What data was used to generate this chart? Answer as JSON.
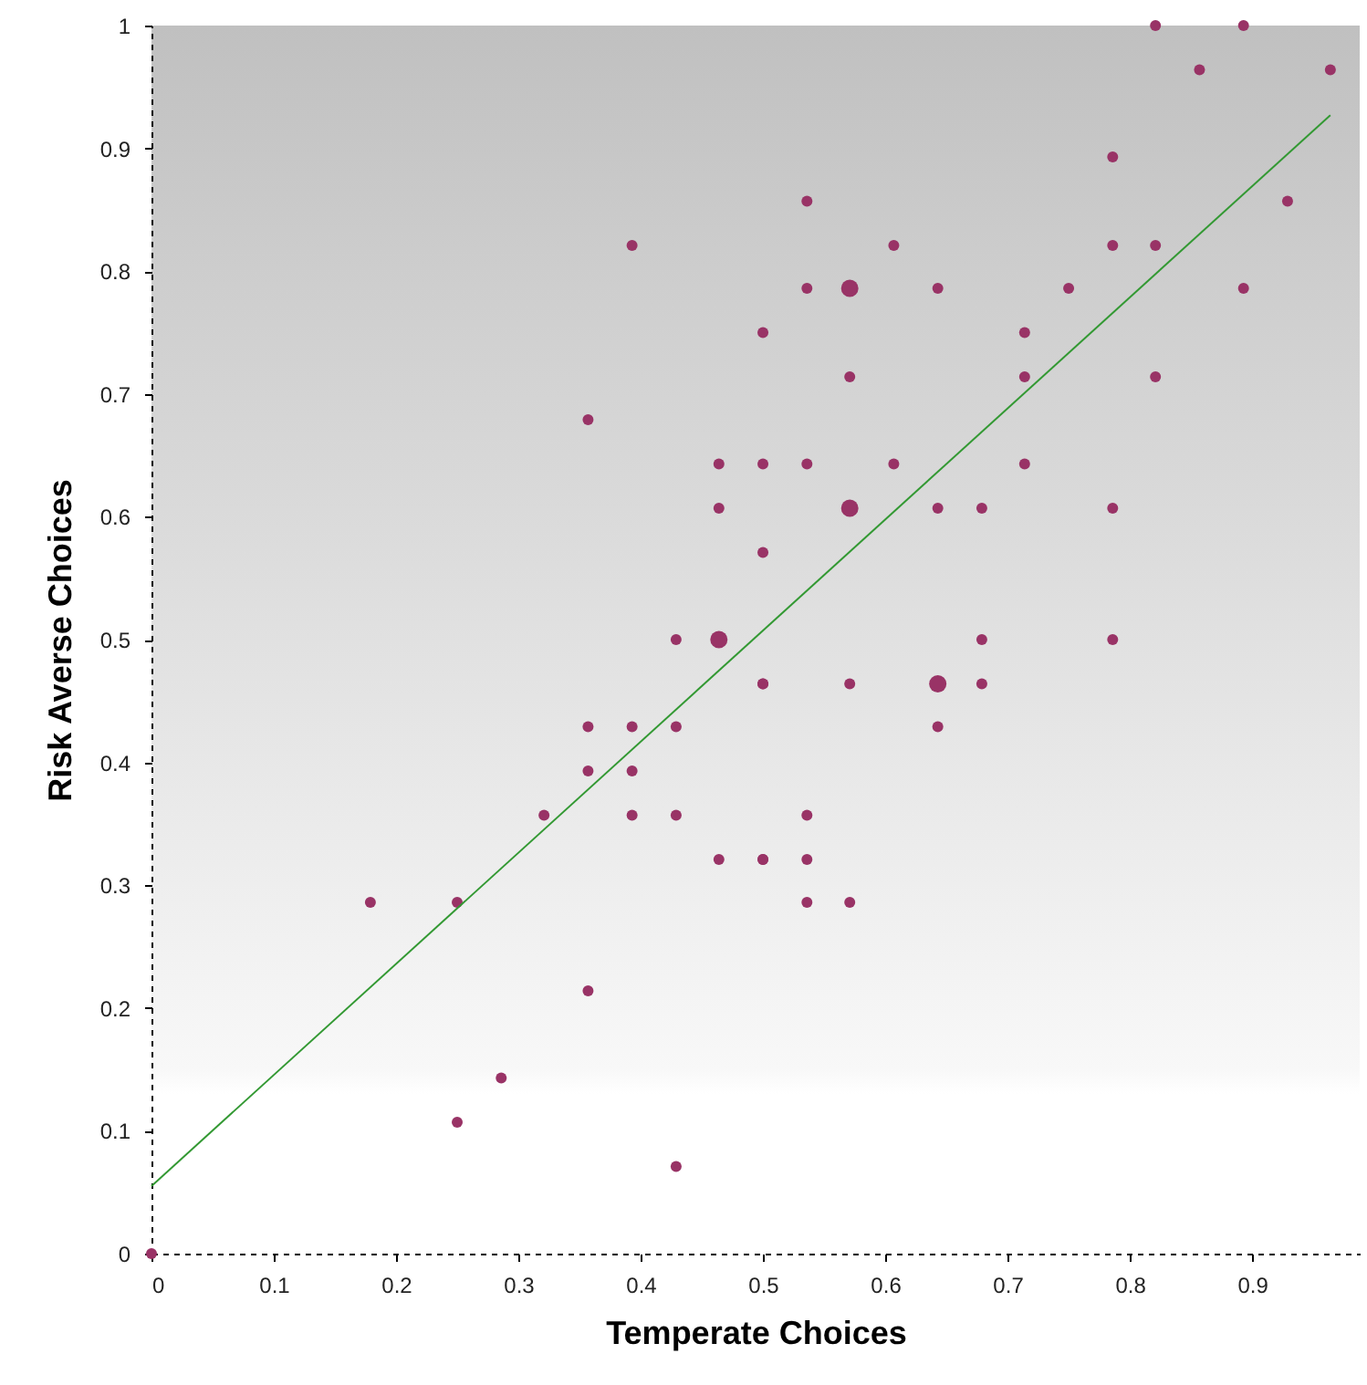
{
  "chart_data": {
    "type": "bubble",
    "xlabel": "Temperate Choices",
    "ylabel": "Risk Averse Choices",
    "xlim": [
      0,
      0.988
    ],
    "ylim": [
      0,
      1
    ],
    "xticks": [
      0,
      0.1,
      0.2,
      0.3,
      0.4,
      0.5,
      0.6,
      0.7,
      0.8,
      0.9
    ],
    "yticks": [
      0,
      0.1,
      0.2,
      0.3,
      0.4,
      0.5,
      0.6,
      0.7,
      0.8,
      0.9,
      1
    ],
    "series": [
      {
        "color": "#993366",
        "marker": "circle",
        "x": [
          0.821,
          0.893,
          0.857,
          0.964,
          0.786,
          0.536,
          0.929,
          0.607,
          0.786,
          0.821,
          0.536,
          0.571,
          0.643,
          0.75,
          0.893,
          0.5,
          0.714,
          0.571,
          0.714,
          0.821,
          0.5,
          0.536,
          0.607,
          0.714,
          0.571,
          0.643,
          0.679,
          0.786,
          0.5,
          0.679,
          0.786,
          0.393,
          0.357,
          0.464,
          0.464,
          0.429,
          0.464,
          0.5,
          0.357,
          0.393,
          0.429,
          0.357,
          0.393,
          0.321,
          0.393,
          0.429,
          0.464,
          0.5,
          0.179,
          0.25,
          0.357,
          0.286,
          0.25,
          0.429,
          0,
          0.5,
          0.571,
          0.643,
          0.679,
          0.643,
          0.536,
          0.5,
          0.536,
          0.536,
          0.571
        ],
        "values": [
          1,
          1,
          0.964,
          0.964,
          0.893,
          0.857,
          0.857,
          0.821,
          0.821,
          0.821,
          0.786,
          0.786,
          0.786,
          0.786,
          0.786,
          0.75,
          0.75,
          0.714,
          0.714,
          0.714,
          0.643,
          0.643,
          0.643,
          0.643,
          0.607,
          0.607,
          0.607,
          0.607,
          0.571,
          0.5,
          0.5,
          0.821,
          0.679,
          0.643,
          0.607,
          0.5,
          0.5,
          0.464,
          0.429,
          0.429,
          0.429,
          0.393,
          0.393,
          0.357,
          0.357,
          0.357,
          0.321,
          0.321,
          0.286,
          0.286,
          0.214,
          0.143,
          0.107,
          0.071,
          0,
          0.464,
          0.464,
          0.464,
          0.464,
          0.429,
          0.357,
          0.321,
          0.321,
          0.286,
          0.286
        ],
        "sizes": [
          0.4,
          0.4,
          0.4,
          0.4,
          0.4,
          0.4,
          0.4,
          0.4,
          0.4,
          0.4,
          0.4,
          1,
          0.4,
          0.4,
          0.4,
          0.4,
          0.4,
          0.4,
          0.4,
          0.4,
          0.4,
          0.4,
          0.4,
          0.4,
          1,
          0.4,
          0.4,
          0.4,
          0.4,
          0.4,
          0.4,
          0.4,
          0.4,
          0.4,
          0.4,
          0.4,
          1,
          0.4,
          0.4,
          0.4,
          0.4,
          0.4,
          0.4,
          0.4,
          0.4,
          0.4,
          0.4,
          0.4,
          0.4,
          0.4,
          0.4,
          0.4,
          0.4,
          0.4,
          0.4,
          0.4,
          0.4,
          1,
          0.4,
          0.4,
          0.4,
          0.4,
          0.4,
          0.4,
          0.4
        ]
      },
      {
        "type": "line",
        "marker": "none",
        "color": "#339933",
        "x": [
          0,
          0.964
        ],
        "values": [
          0.055,
          0.927
        ]
      }
    ]
  }
}
